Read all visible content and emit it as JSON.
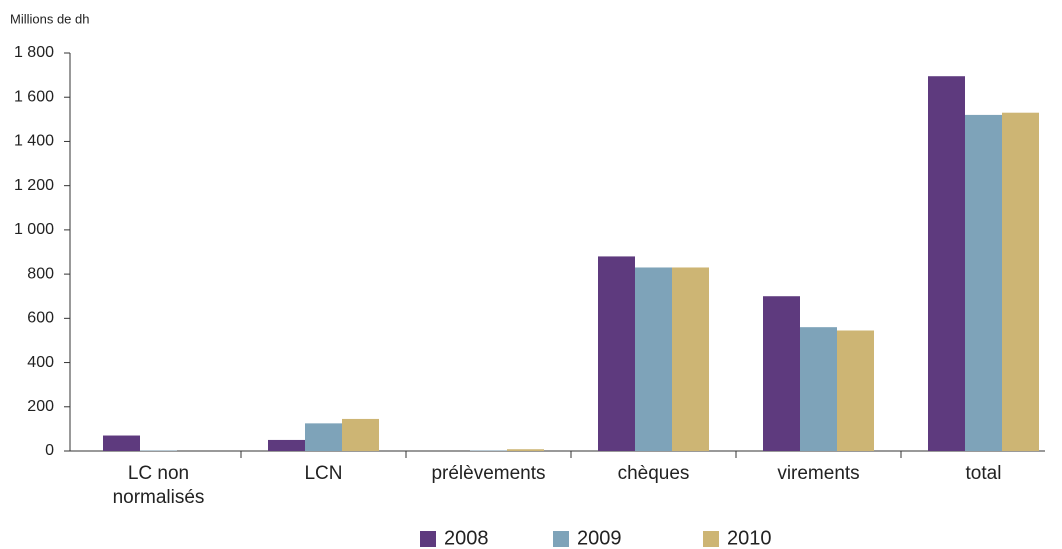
{
  "chart_data": {
    "type": "bar",
    "y_label": "Millions de dh",
    "categories": [
      "LC non normalisés",
      "LCN",
      "prélèvements",
      "chèques",
      "virements",
      "total"
    ],
    "series": [
      {
        "name": "2008",
        "color": "#5e3a7e",
        "values": [
          70,
          50,
          0,
          880,
          700,
          1695
        ]
      },
      {
        "name": "2009",
        "color": "#7ea3b9",
        "values": [
          2,
          125,
          2,
          830,
          560,
          1520
        ]
      },
      {
        "name": "2010",
        "color": "#cdb574",
        "values": [
          0,
          145,
          8,
          830,
          545,
          1530
        ]
      }
    ],
    "ylim": [
      0,
      1800
    ],
    "yticks": [
      0,
      200,
      400,
      600,
      800,
      {
        "value": 1000,
        "label": "1 000"
      },
      {
        "value": 1200,
        "label": "1 200"
      },
      {
        "value": 1400,
        "label": "1 400"
      },
      {
        "value": 1600,
        "label": "1 600"
      },
      {
        "value": 1800,
        "label": "1 800"
      }
    ],
    "grid": false,
    "legend": "bottom"
  }
}
